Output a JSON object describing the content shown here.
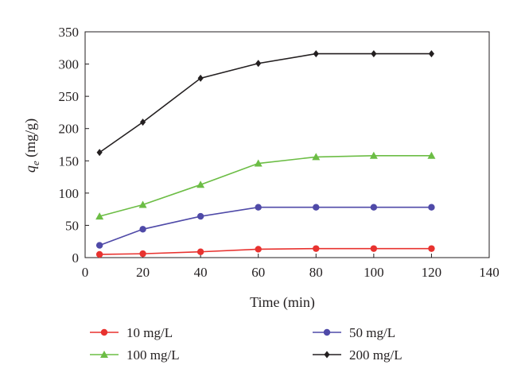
{
  "chart_data": {
    "type": "line",
    "title": "",
    "xlabel": "Time (min)",
    "ylabel": {
      "symbol": "q",
      "subscript": "e",
      "unit": " (mg/g)"
    },
    "xlim": [
      0,
      140
    ],
    "ylim": [
      0,
      350
    ],
    "xticks": [
      0,
      20,
      40,
      60,
      80,
      100,
      120,
      140
    ],
    "yticks": [
      0,
      50,
      100,
      150,
      200,
      250,
      300,
      350
    ],
    "grid": false,
    "legend_position": "bottom",
    "x": [
      5,
      20,
      40,
      60,
      80,
      100,
      120
    ],
    "series": [
      {
        "name": "10 mg/L",
        "color": "#e8322f",
        "marker": "circle",
        "values": [
          5,
          6,
          9,
          13,
          14,
          14,
          14
        ]
      },
      {
        "name": "50 mg/L",
        "color": "#4f4aa8",
        "marker": "circle",
        "values": [
          19,
          44,
          64,
          78,
          78,
          78,
          78
        ]
      },
      {
        "name": "100 mg/L",
        "color": "#6cbd45",
        "marker": "triangle",
        "values": [
          64,
          82,
          113,
          146,
          156,
          158,
          158
        ]
      },
      {
        "name": "200 mg/L",
        "color": "#231f20",
        "marker": "diamond",
        "values": [
          163,
          210,
          278,
          301,
          316,
          316,
          316
        ]
      }
    ]
  }
}
